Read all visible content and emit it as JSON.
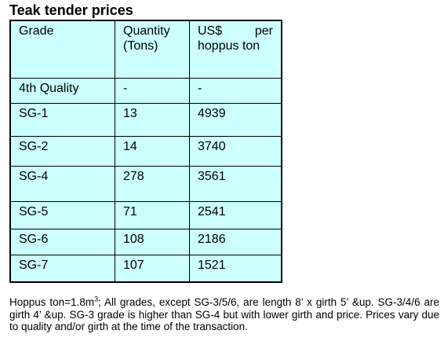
{
  "title": "Teak tender prices",
  "table": {
    "header": [
      "Grade",
      "Quantity (Tons)",
      "US$ per hoppus ton"
    ],
    "rows": [
      [
        "4th Quality",
        "-",
        "-"
      ],
      [
        "SG-1",
        13,
        4939
      ],
      [
        "SG-2",
        14,
        3740
      ],
      [
        "SG-4",
        278,
        3561
      ],
      [
        "SG-5",
        71,
        2541
      ],
      [
        "SG-6",
        108,
        2186
      ],
      [
        "SG-7",
        107,
        1521
      ]
    ]
  },
  "note": {
    "lead": "Hoppus ton=1.8m",
    "superscript": "3",
    "text": "; All grades, except SG-3/5/6, are length 8’ x girth 5’ &up. SG-3/4/6 are girth 4’ &up. SG-3 grade is higher than SG-4 but with lower girth and price. Prices vary due to quality and/or girth at the time of the transaction."
  }
}
